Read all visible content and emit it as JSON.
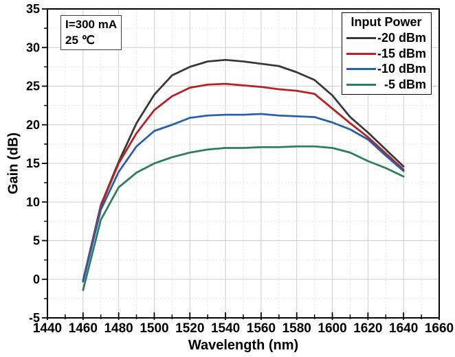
{
  "chart_data": {
    "type": "line",
    "title": "",
    "xlabel": "Wavelength (nm)",
    "ylabel": "Gain (dB)",
    "xlim": [
      1440,
      1660
    ],
    "ylim": [
      -5,
      35
    ],
    "x_major_ticks": [
      1440,
      1460,
      1480,
      1500,
      1520,
      1540,
      1560,
      1580,
      1600,
      1620,
      1640,
      1660
    ],
    "y_major_ticks": [
      -5,
      0,
      5,
      10,
      15,
      20,
      25,
      30,
      35
    ],
    "x_minor_step": 10,
    "y_minor_step": 2.5,
    "grid": {
      "major": "solid",
      "minor": "dashed",
      "major_color": "#cccccc",
      "minor_color": "#e2e2e2"
    },
    "legend": {
      "title": "Input Power",
      "position": "top-right"
    },
    "annotation": {
      "lines": [
        "I=300 mA",
        "25 ℃"
      ]
    },
    "x": [
      1460,
      1470,
      1480,
      1490,
      1500,
      1510,
      1520,
      1530,
      1540,
      1550,
      1560,
      1570,
      1580,
      1590,
      1600,
      1610,
      1620,
      1630,
      1640
    ],
    "series": [
      {
        "name": "-20 dBm",
        "color": "#383838",
        "values": [
          -0.2,
          9.6,
          15.2,
          20.2,
          23.9,
          26.4,
          27.5,
          28.2,
          28.4,
          28.2,
          27.9,
          27.6,
          26.8,
          25.8,
          23.8,
          21.0,
          19.0,
          16.8,
          14.6
        ]
      },
      {
        "name": "-15 dBm",
        "color": "#b92025",
        "values": [
          -0.2,
          9.5,
          15.0,
          18.9,
          21.9,
          23.7,
          24.8,
          25.2,
          25.3,
          25.1,
          24.9,
          24.6,
          24.4,
          24.0,
          22.1,
          20.2,
          18.4,
          16.3,
          14.2
        ]
      },
      {
        "name": "-10 dBm",
        "color": "#2760a8",
        "values": [
          -0.3,
          9.0,
          13.9,
          17.2,
          19.2,
          20.0,
          20.9,
          21.2,
          21.3,
          21.3,
          21.4,
          21.2,
          21.1,
          21.0,
          20.3,
          19.4,
          18.1,
          16.0,
          14.0
        ]
      },
      {
        "name": "-5 dBm",
        "color": "#2e7d5b",
        "values": [
          -1.4,
          7.7,
          11.9,
          13.8,
          15.0,
          15.8,
          16.4,
          16.8,
          17.0,
          17.0,
          17.1,
          17.1,
          17.2,
          17.2,
          17.0,
          16.4,
          15.3,
          14.4,
          13.3
        ]
      }
    ],
    "axis_color": "#000000",
    "background_color": "#ffffff"
  }
}
